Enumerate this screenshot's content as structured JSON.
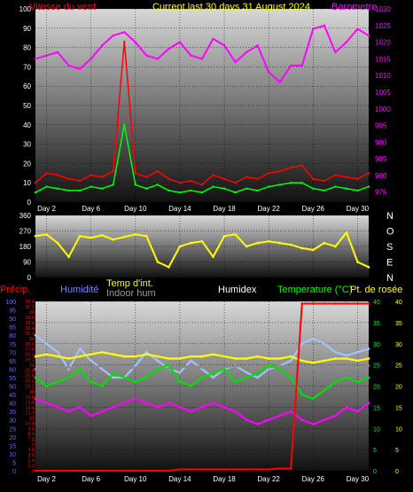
{
  "chart_data": [
    {
      "type": "line",
      "title": "Current last 30 days 31 August 2024",
      "legend": {
        "left": "Vitesse du vent",
        "right": "Barometre"
      },
      "x_tick_labels": [
        "Day 2",
        "Day 6",
        "Day 10",
        "Day 14",
        "Day 18",
        "Day 22",
        "Day 26",
        "Day 30"
      ],
      "y_left": {
        "ylim": [
          0,
          100
        ],
        "ticks": [
          0,
          10,
          20,
          30,
          40,
          50,
          60,
          70,
          80,
          90,
          100
        ]
      },
      "y_right": {
        "ylim": [
          972,
          1030
        ],
        "ticks": [
          975,
          980,
          985,
          990,
          995,
          1000,
          1005,
          1010,
          1015,
          1020,
          1025,
          1030
        ]
      },
      "series": [
        {
          "color": "#ff00ff",
          "axis": "right",
          "x": [
            1,
            2,
            3,
            4,
            5,
            6,
            7,
            8,
            9,
            10,
            11,
            12,
            13,
            14,
            15,
            16,
            17,
            18,
            19,
            20,
            21,
            22,
            23,
            24,
            25,
            26,
            27,
            28,
            29,
            30,
            31
          ],
          "values": [
            1015,
            1016,
            1017,
            1013,
            1012,
            1015,
            1019,
            1022,
            1023,
            1020,
            1016,
            1015,
            1018,
            1020,
            1016,
            1015,
            1021,
            1019,
            1014,
            1017,
            1019,
            1011,
            1008,
            1013,
            1013,
            1024,
            1025,
            1017,
            1020,
            1024,
            1022
          ]
        },
        {
          "color": "#ff0000",
          "axis": "left",
          "x": [
            1,
            2,
            3,
            4,
            5,
            6,
            7,
            8,
            9,
            10,
            11,
            12,
            13,
            14,
            15,
            16,
            17,
            18,
            19,
            20,
            21,
            22,
            23,
            24,
            25,
            26,
            27,
            28,
            29,
            30,
            31
          ],
          "values": [
            10,
            15,
            14,
            12,
            11,
            14,
            13,
            16,
            83,
            15,
            13,
            16,
            12,
            10,
            11,
            9,
            14,
            12,
            10,
            13,
            12,
            15,
            16,
            18,
            19,
            12,
            11,
            14,
            13,
            12,
            15
          ]
        },
        {
          "color": "#00ff00",
          "axis": "left",
          "x": [
            1,
            2,
            3,
            4,
            5,
            6,
            7,
            8,
            9,
            10,
            11,
            12,
            13,
            14,
            15,
            16,
            17,
            18,
            19,
            20,
            21,
            22,
            23,
            24,
            25,
            26,
            27,
            28,
            29,
            30,
            31
          ],
          "values": [
            5,
            8,
            7,
            6,
            6,
            8,
            7,
            9,
            40,
            9,
            7,
            9,
            6,
            5,
            6,
            5,
            8,
            7,
            5,
            7,
            6,
            8,
            9,
            10,
            10,
            7,
            6,
            8,
            7,
            6,
            8
          ]
        }
      ]
    },
    {
      "type": "line",
      "y_left": {
        "ylim": [
          0,
          360
        ],
        "ticks": [
          0,
          90,
          180,
          270,
          360
        ]
      },
      "compass_labels": [
        "N",
        "O",
        "S",
        "E",
        "N"
      ],
      "series": [
        {
          "color": "#ffff00",
          "x": [
            1,
            2,
            3,
            4,
            5,
            6,
            7,
            8,
            9,
            10,
            11,
            12,
            13,
            14,
            15,
            16,
            17,
            18,
            19,
            20,
            21,
            22,
            23,
            24,
            25,
            26,
            27,
            28,
            29,
            30,
            31
          ],
          "values": [
            240,
            250,
            200,
            120,
            240,
            230,
            245,
            220,
            235,
            250,
            240,
            90,
            60,
            180,
            200,
            210,
            120,
            240,
            250,
            180,
            200,
            210,
            200,
            190,
            170,
            160,
            200,
            180,
            260,
            90,
            60
          ]
        }
      ]
    },
    {
      "type": "line",
      "legend": [
        "Précip.",
        "Humidité",
        "Temp d'int.",
        "Indoor hum",
        "Humidex",
        "Temperature (°C)",
        "Pt. de rosée"
      ],
      "x_tick_labels": [
        "Day 2",
        "Day 6",
        "Day 10",
        "Day 14",
        "Day 18",
        "Day 22",
        "Day 26",
        "Day 30"
      ],
      "y_precip": {
        "ylim": [
          0,
          38.4
        ],
        "ticks": [
          0,
          1.2,
          2.4,
          3.6,
          4.8,
          6,
          7.2,
          8.4,
          9.6,
          10.8,
          12,
          13.2,
          14.4,
          15.6,
          16.8,
          18,
          19.2,
          20.4,
          21.6,
          22.8,
          24,
          25.2,
          26.4,
          27.6,
          28.8,
          30,
          31.2,
          32.4,
          33.6,
          34.8,
          36,
          37.2,
          38.4
        ]
      },
      "y_humidity": {
        "ylim": [
          0,
          100
        ],
        "ticks": [
          0,
          5,
          10,
          15,
          20,
          25,
          30,
          35,
          40,
          45,
          50,
          55,
          60,
          65,
          70,
          75,
          80,
          85,
          90,
          95,
          100
        ]
      },
      "y_temp": {
        "ylim": [
          0,
          40
        ],
        "ticks": [
          0,
          5,
          10,
          15,
          20,
          25,
          30,
          35,
          40
        ]
      },
      "series": [
        {
          "name": "Humidité",
          "color": "#9fc4ff",
          "axis": "humidity",
          "x": [
            1,
            2,
            3,
            4,
            5,
            6,
            7,
            8,
            9,
            10,
            11,
            12,
            13,
            14,
            15,
            16,
            17,
            18,
            19,
            20,
            21,
            22,
            23,
            24,
            25,
            26,
            27,
            28,
            29,
            30,
            31
          ],
          "values": [
            80,
            75,
            70,
            60,
            72,
            65,
            60,
            55,
            55,
            62,
            70,
            65,
            60,
            58,
            65,
            60,
            55,
            60,
            62,
            58,
            55,
            60,
            62,
            65,
            75,
            78,
            75,
            70,
            68,
            70,
            72
          ]
        },
        {
          "name": "Temp d'int.",
          "color": "#ffff00",
          "axis": "temp",
          "x": [
            1,
            2,
            3,
            4,
            5,
            6,
            7,
            8,
            9,
            10,
            11,
            12,
            13,
            14,
            15,
            16,
            17,
            18,
            19,
            20,
            21,
            22,
            23,
            24,
            25,
            26,
            27,
            28,
            29,
            30,
            31
          ],
          "values": [
            27,
            27.5,
            27,
            26.5,
            27,
            27.5,
            28,
            27.5,
            27,
            27,
            27.5,
            27,
            26.5,
            26.5,
            27,
            27,
            27.5,
            27,
            26.5,
            26.5,
            27,
            26.5,
            26.5,
            27,
            26,
            25.5,
            26,
            26.5,
            26.5,
            26,
            26.5
          ]
        },
        {
          "name": "Indoor hum",
          "color": "#8a8a8a",
          "axis": "humidity",
          "x": [
            1,
            2,
            3,
            4,
            5,
            6,
            7,
            8,
            9,
            10,
            11,
            12,
            13,
            14,
            15,
            16,
            17,
            18,
            19,
            20,
            21,
            22,
            23,
            24,
            25,
            26,
            27,
            28,
            29,
            30,
            31
          ],
          "values": [
            60,
            61,
            62,
            61,
            60,
            61,
            62,
            61,
            60,
            61,
            62,
            61,
            60,
            61,
            62,
            61,
            60,
            61,
            62,
            61,
            60,
            61,
            62,
            61,
            60,
            61,
            62,
            61,
            60,
            61,
            62
          ]
        },
        {
          "name": "Temperature (°C)",
          "color": "#00e000",
          "axis": "temp",
          "x": [
            1,
            2,
            3,
            4,
            5,
            6,
            7,
            8,
            9,
            10,
            11,
            12,
            13,
            14,
            15,
            16,
            17,
            18,
            19,
            20,
            21,
            22,
            23,
            24,
            25,
            26,
            27,
            28,
            29,
            30,
            31
          ],
          "values": [
            22,
            20,
            21,
            22,
            24,
            21,
            20,
            23,
            22,
            21,
            22,
            24,
            25,
            21,
            20,
            22,
            23,
            24,
            21,
            22,
            23,
            25,
            24,
            22,
            18,
            17,
            19,
            21,
            22,
            21,
            22
          ]
        },
        {
          "name": "Pt. de rosée",
          "color": "#ff00ff",
          "axis": "temp",
          "x": [
            1,
            2,
            3,
            4,
            5,
            6,
            7,
            8,
            9,
            10,
            11,
            12,
            13,
            14,
            15,
            16,
            17,
            18,
            19,
            20,
            21,
            22,
            23,
            24,
            25,
            26,
            27,
            28,
            29,
            30,
            31
          ],
          "values": [
            17,
            16,
            15,
            14,
            15,
            13,
            14,
            15,
            16,
            17,
            16,
            15,
            16,
            15,
            14,
            15,
            16,
            15,
            14,
            12,
            11,
            12,
            13,
            14,
            12,
            11,
            12,
            13,
            15,
            14,
            16
          ]
        },
        {
          "name": "Précip.",
          "color": "#ff0000",
          "axis": "precip",
          "x": [
            1,
            2,
            3,
            4,
            5,
            6,
            7,
            8,
            9,
            10,
            11,
            12,
            13,
            14,
            15,
            16,
            17,
            18,
            19,
            20,
            21,
            22,
            23,
            24,
            25,
            26,
            27,
            28,
            29,
            30,
            31
          ],
          "values": [
            0,
            0,
            0,
            0,
            0,
            0,
            0,
            0,
            0,
            0,
            0,
            0,
            0,
            0.3,
            0.3,
            0.3,
            0.3,
            0.3,
            0.3,
            0.3,
            0.3,
            0.3,
            0.5,
            0.5,
            37.9,
            37.9,
            37.9,
            37.9,
            37.9,
            37.9,
            37.9
          ]
        }
      ]
    }
  ]
}
